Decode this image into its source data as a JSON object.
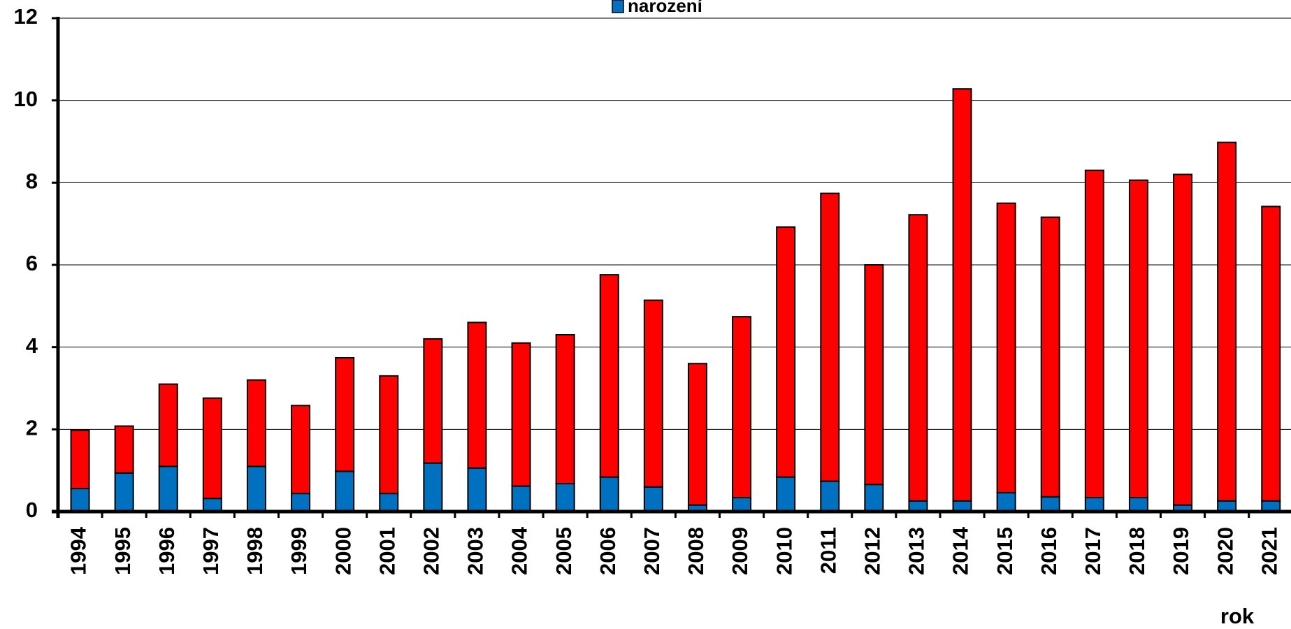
{
  "chart_data": {
    "type": "stacked_bar",
    "x_label": "rok",
    "categories": [
      "1994",
      "1995",
      "1996",
      "1997",
      "1998",
      "1999",
      "2000",
      "2001",
      "2002",
      "2003",
      "2004",
      "2005",
      "2006",
      "2007",
      "2008",
      "2009",
      "2010",
      "2011",
      "2012",
      "2013",
      "2014",
      "2015",
      "2016",
      "2017",
      "2018",
      "2019",
      "2020",
      "2021"
    ],
    "series": [
      {
        "name": "narození",
        "color": "#0070c0",
        "values": [
          0.56,
          0.94,
          1.1,
          0.32,
          1.1,
          0.44,
          0.98,
          0.44,
          1.18,
          1.06,
          0.62,
          0.68,
          0.84,
          0.6,
          0.16,
          0.34,
          0.84,
          0.74,
          0.66,
          0.26,
          0.26,
          0.46,
          0.36,
          0.34,
          0.34,
          0.16,
          0.26,
          0.26
        ]
      },
      {
        "color": "#ff0000",
        "values": [
          1.42,
          1.14,
          2.0,
          2.44,
          2.1,
          2.14,
          2.76,
          2.86,
          3.02,
          3.54,
          3.48,
          3.62,
          4.92,
          4.54,
          3.44,
          4.4,
          6.08,
          7.0,
          5.34,
          6.96,
          10.02,
          7.04,
          6.8,
          7.96,
          7.72,
          8.04,
          8.72,
          7.16
        ]
      }
    ],
    "ylim": [
      0,
      12
    ],
    "yticks": [
      0,
      2,
      4,
      6,
      8,
      10,
      12
    ],
    "grid": true,
    "legend": "top"
  }
}
